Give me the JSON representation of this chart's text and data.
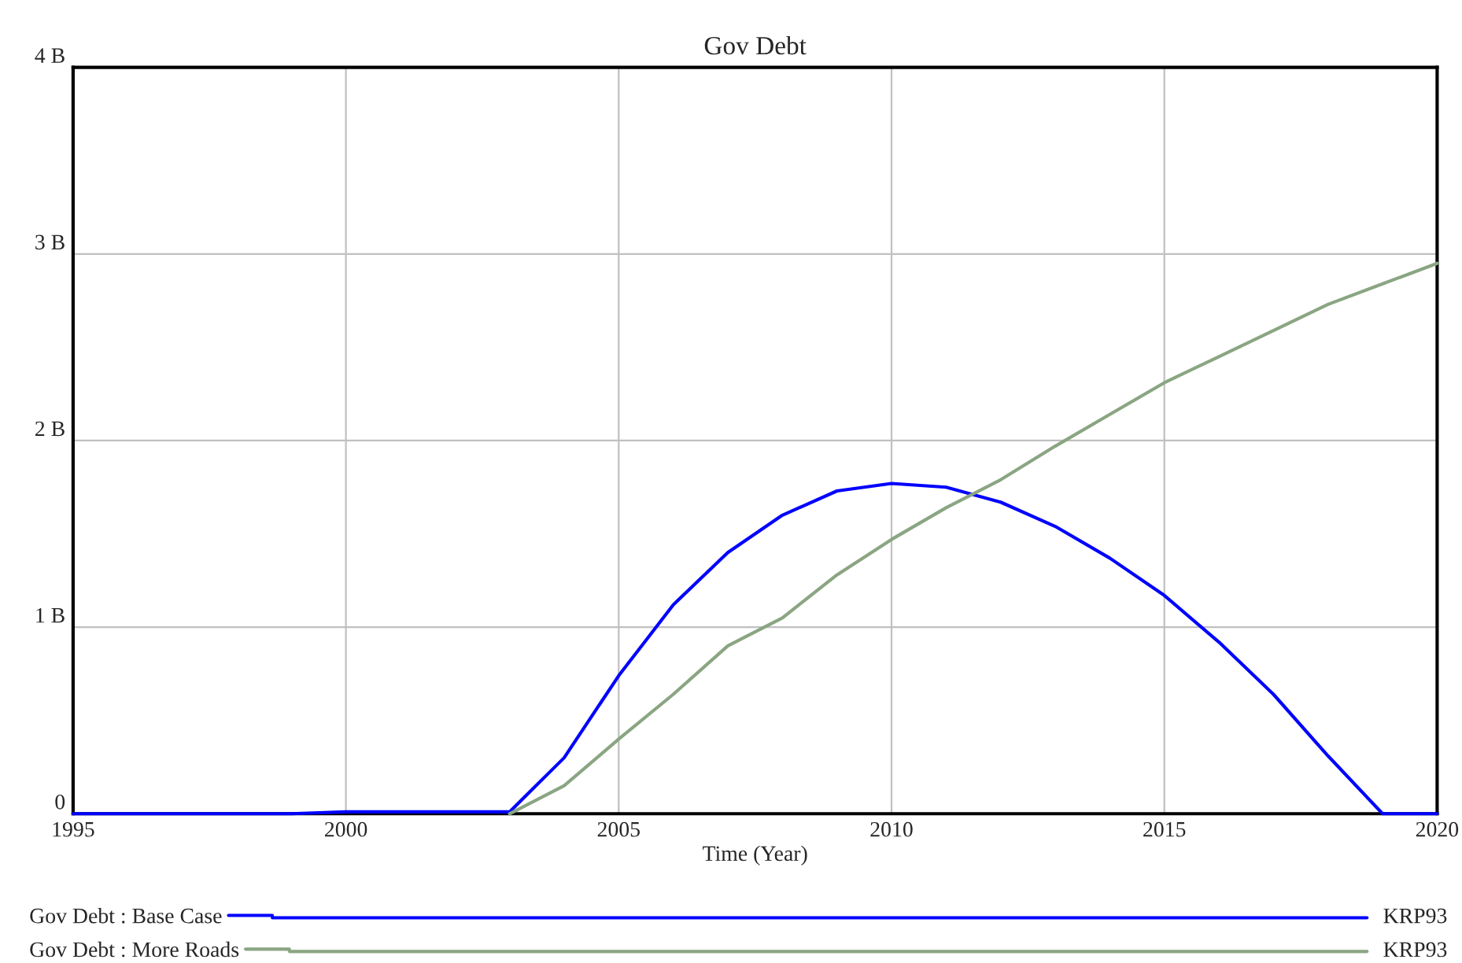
{
  "chart_data": {
    "type": "line",
    "title": "Gov Debt",
    "xlabel": "Time (Year)",
    "x": [
      1995,
      1996,
      1997,
      1998,
      1999,
      2000,
      2001,
      2002,
      2003,
      2004,
      2005,
      2006,
      2007,
      2008,
      2009,
      2010,
      2011,
      2012,
      2013,
      2014,
      2015,
      2016,
      2017,
      2018,
      2019,
      2020
    ],
    "series": [
      {
        "name": "Gov Debt : Base Case",
        "color": "#0000ff",
        "values": [
          0,
          0,
          0,
          0,
          0,
          0.01,
          0.01,
          0.01,
          0.01,
          0.3,
          0.74,
          1.12,
          1.4,
          1.6,
          1.73,
          1.77,
          1.75,
          1.67,
          1.54,
          1.37,
          1.17,
          0.92,
          0.64,
          0.31,
          0,
          0
        ]
      },
      {
        "name": "Gov Debt : More Roads",
        "color": "#8aa582",
        "values": [
          null,
          null,
          null,
          null,
          null,
          null,
          null,
          null,
          0,
          0.15,
          0.4,
          0.64,
          0.9,
          1.05,
          1.28,
          1.47,
          1.64,
          1.79,
          1.97,
          2.14,
          2.31,
          2.45,
          2.59,
          2.73,
          2.84,
          2.95
        ]
      }
    ],
    "xlim": [
      1995,
      2020
    ],
    "xticks": [
      1995,
      2000,
      2005,
      2010,
      2015,
      2020
    ],
    "ylim": [
      0,
      4
    ],
    "yticks": [
      0,
      {
        "value": 1,
        "label": "1 B"
      },
      {
        "value": 2,
        "label": "2 B"
      },
      {
        "value": 3,
        "label": "3 B"
      },
      {
        "value": 4,
        "label": "4 B"
      }
    ],
    "grid": true,
    "legend": "bottom",
    "marker": "none",
    "line_style": "solid",
    "annotations": [
      "KRP93",
      "KRP93"
    ]
  }
}
